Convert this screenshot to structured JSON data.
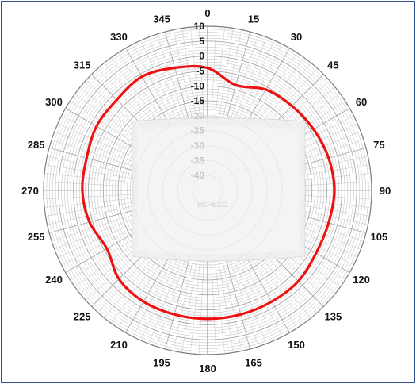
{
  "chart_data": {
    "type": "polar-line",
    "title": "",
    "angle_labels": [
      "0",
      "15",
      "30",
      "45",
      "60",
      "75",
      "90",
      "105",
      "120",
      "135",
      "150",
      "165",
      "180",
      "195",
      "210",
      "225",
      "240",
      "255",
      "270",
      "285",
      "300",
      "315",
      "330",
      "345"
    ],
    "radial_ticks": [
      "10",
      "5",
      "0",
      "-5",
      "-10",
      "-15",
      "-20",
      "-25",
      "-30",
      "-35",
      "-40"
    ],
    "rlim": [
      -45,
      10
    ],
    "grid": true,
    "line_color": "#ee1111",
    "grid_color": "#bfbfbf",
    "series": [
      {
        "angles": [
          0,
          15,
          30,
          45,
          60,
          75,
          90,
          105,
          120,
          135,
          150,
          165,
          180,
          195,
          210,
          225,
          240,
          255,
          270,
          285,
          300,
          315,
          330,
          345,
          360
        ],
        "values": [
          -4,
          -8.5,
          -6,
          -5,
          -4,
          -3,
          -2.5,
          -3,
          -3,
          -2,
          -2,
          -2,
          -2,
          -2,
          -2,
          -3,
          -6,
          -4,
          -3,
          -3,
          -2,
          -2,
          -1,
          -2.5,
          -4
        ]
      }
    ]
  },
  "watermark": {
    "label": "ECHECO"
  }
}
